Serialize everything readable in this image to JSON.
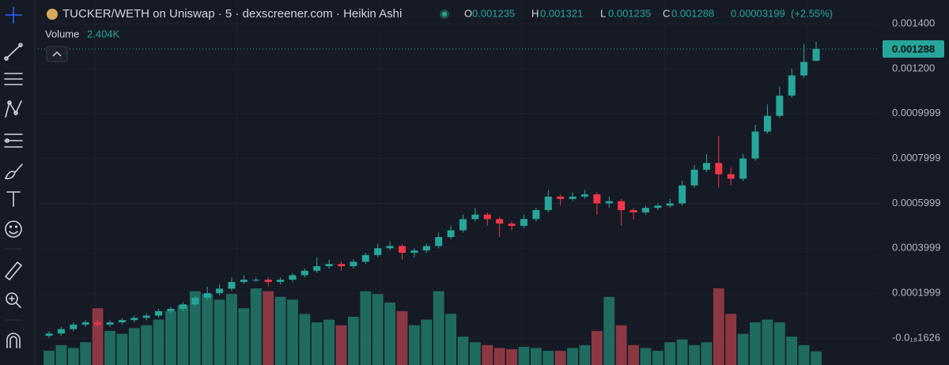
{
  "chart_data": {
    "type": "candlestick",
    "title": "TUCKER/WETH on Uniswap · 5 · dexscreener.com · Heikin Ashi",
    "ohlc_labels": [
      "O",
      "H",
      "L",
      "C"
    ],
    "change": 3.199e-05,
    "change_label": "(+2.55%)",
    "up_color": "#26a69a",
    "down_color": "#f23645",
    "up_volume_color": "#1f6b60",
    "down_volume_color": "#8c3843",
    "ylim": [
      -0.00012,
      0.001506
    ],
    "yticks": [
      0.0014,
      0.0012,
      0.0009999,
      0.0007999,
      0.0005999,
      0.0003999,
      0.0001999,
      {
        "value": -1.626e-19,
        "label": "-0.0₁₈1626"
      }
    ],
    "ytick_labels": [
      "0.001400",
      "0.001200"
    ],
    "grid": true,
    "open": [
      1e-05,
      2e-05,
      4e-05,
      6e-05,
      7e-05,
      6e-05,
      7e-05,
      8e-05,
      9e-05,
      0.0001,
      0.00012,
      0.00013,
      0.00015,
      0.00018,
      0.0002,
      0.00022,
      0.00025,
      0.00026,
      0.00026,
      0.00025,
      0.00026,
      0.00028,
      0.0003,
      0.00032,
      0.00033,
      0.00032,
      0.00034,
      0.00037,
      0.0004,
      0.00041,
      0.00038,
      0.00039,
      0.00041,
      0.00045,
      0.00048,
      0.00053,
      0.00055,
      0.00053,
      0.00051,
      0.0005,
      0.00053,
      0.00057,
      0.00063,
      0.00062,
      0.00063,
      0.00064,
      0.0006,
      0.00061,
      0.00057,
      0.00056,
      0.00058,
      0.00059,
      0.0006,
      0.00068,
      0.00075,
      0.00078,
      0.00073,
      0.00071,
      0.0008,
      0.00092,
      0.00099,
      0.00108,
      0.00117,
      0.001235
    ],
    "high": [
      3e-05,
      5e-05,
      7e-05,
      8e-05,
      8e-05,
      8e-05,
      9e-05,
      0.0001,
      0.00011,
      0.00013,
      0.00014,
      0.00016,
      0.00019,
      0.00023,
      0.00024,
      0.00027,
      0.00028,
      0.00027,
      0.00027,
      0.00027,
      0.00029,
      0.00031,
      0.00036,
      0.00035,
      0.00034,
      0.00035,
      0.00038,
      0.00042,
      0.00043,
      0.00042,
      0.0004,
      0.00042,
      0.00047,
      0.0005,
      0.00055,
      0.00058,
      0.00056,
      0.00054,
      0.00052,
      0.00055,
      0.00058,
      0.00066,
      0.00064,
      0.00065,
      0.00066,
      0.00065,
      0.00063,
      0.00062,
      0.00058,
      0.00059,
      0.0006,
      0.00062,
      0.0007,
      0.00077,
      0.00082,
      0.0009,
      0.00076,
      0.00082,
      0.00095,
      0.00104,
      0.00112,
      0.0012,
      0.00131,
      0.001321
    ],
    "low": [
      0,
      1e-05,
      3e-05,
      5e-05,
      5e-05,
      5e-05,
      6e-05,
      7e-05,
      8e-05,
      9e-05,
      0.00011,
      0.00012,
      0.00014,
      0.00017,
      0.00019,
      0.00021,
      0.00024,
      0.00025,
      0.00023,
      0.00024,
      0.00025,
      0.00027,
      0.00029,
      0.00031,
      0.0003,
      0.00031,
      0.00033,
      0.00036,
      0.00039,
      0.00035,
      0.00036,
      0.00038,
      0.0004,
      0.00044,
      0.00047,
      0.00052,
      0.0005,
      0.00045,
      0.00048,
      0.00049,
      0.00052,
      0.00056,
      0.00059,
      0.00061,
      0.00062,
      0.00055,
      0.00058,
      0.0005,
      0.00053,
      0.00055,
      0.00057,
      0.00058,
      0.00059,
      0.00067,
      0.00074,
      0.00067,
      0.00068,
      0.0007,
      0.00079,
      0.00091,
      0.00098,
      0.00107,
      0.00116,
      0.001235
    ],
    "close": [
      2e-05,
      4e-05,
      6e-05,
      7e-05,
      6e-05,
      7e-05,
      8e-05,
      9e-05,
      0.0001,
      0.00012,
      0.00013,
      0.00015,
      0.00018,
      0.0002,
      0.00022,
      0.00025,
      0.00026,
      0.00026,
      0.00025,
      0.00026,
      0.00028,
      0.0003,
      0.00032,
      0.00033,
      0.00032,
      0.00034,
      0.00037,
      0.0004,
      0.00041,
      0.00038,
      0.00039,
      0.00041,
      0.00045,
      0.00048,
      0.00053,
      0.00055,
      0.00053,
      0.00051,
      0.0005,
      0.00053,
      0.00057,
      0.00063,
      0.00062,
      0.00063,
      0.00064,
      0.0006,
      0.00061,
      0.00057,
      0.00056,
      0.00058,
      0.00059,
      0.0006,
      0.00068,
      0.00075,
      0.00078,
      0.00073,
      0.00071,
      0.0008,
      0.00092,
      0.00099,
      0.00108,
      0.00117,
      0.00123,
      0.001288
    ],
    "volume": {
      "name": "Volume",
      "last_label": "2.404K",
      "values": [
        2500,
        3500,
        3000,
        4000,
        10000,
        6000,
        5500,
        6500,
        7000,
        8000,
        9500,
        10500,
        13000,
        12500,
        11500,
        12500,
        10000,
        13500,
        13000,
        12000,
        11500,
        9000,
        7500,
        8000,
        7000,
        8500,
        13000,
        12500,
        11000,
        9500,
        7000,
        8000,
        13000,
        9000,
        5000,
        4000,
        3500,
        3000,
        2800,
        3200,
        3000,
        2500,
        2500,
        3000,
        3500,
        6000,
        12000,
        7000,
        3500,
        3000,
        2500,
        4000,
        4500,
        3500,
        4000,
        13500,
        9000,
        5500,
        7500,
        8000,
        7500,
        5000,
        3500,
        2404
      ]
    }
  }
}
